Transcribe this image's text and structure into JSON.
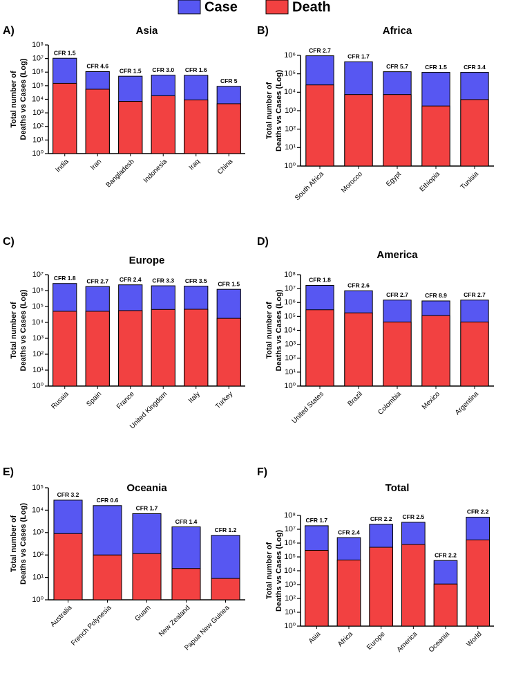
{
  "chart_data": [
    {
      "type": "bar",
      "panel": "A)",
      "title": "Asia",
      "ylabel": [
        "Total number of",
        "Deaths vs Cases (Log)"
      ],
      "log_scale": true,
      "categories": [
        "India",
        "Iran",
        "Bangladesh",
        "Indonesia",
        "Iraq",
        "China"
      ],
      "annotations": [
        "CFR 1.5",
        "CFR 4.6",
        "CFR 1.5",
        "CFR 3.0",
        "CFR 1.6",
        "CFR 5"
      ],
      "series": [
        {
          "name": "Case",
          "color": "#5757f2",
          "values": [
            10500000,
            1100000,
            500000,
            600000,
            580000,
            90000
          ]
        },
        {
          "name": "Death",
          "color": "#f24141",
          "values": [
            150000,
            55000,
            7000,
            18000,
            9000,
            4700
          ]
        }
      ],
      "ylim": [
        1,
        100000000
      ],
      "yticks": [
        {
          "value": 1,
          "label": "10⁰"
        },
        {
          "value": 10,
          "label": "10¹"
        },
        {
          "value": 100,
          "label": "10²"
        },
        {
          "value": 1000,
          "label": "10³"
        },
        {
          "value": 10000,
          "label": "10⁴"
        },
        {
          "value": 100000,
          "label": "10⁵"
        },
        {
          "value": 1000000,
          "label": "10⁶"
        },
        {
          "value": 10000000,
          "label": "10⁷"
        },
        {
          "value": 100000000,
          "label": "10⁸"
        }
      ]
    },
    {
      "type": "bar",
      "panel": "B)",
      "title": "Africa",
      "ylabel": [
        "Total number of",
        "Deaths vs Cases (Log)"
      ],
      "log_scale": true,
      "categories": [
        "South Africa",
        "Morocco",
        "Egypt",
        "Ethiopia",
        "Tunisia"
      ],
      "annotations": [
        "CFR 2.7",
        "CFR 1.7",
        "CFR 5.7",
        "CFR 1.5",
        "CFR 3.4"
      ],
      "series": [
        {
          "name": "Case",
          "color": "#5757f2",
          "values": [
            950000,
            450000,
            130000,
            120000,
            120000
          ]
        },
        {
          "name": "Death",
          "color": "#f24141",
          "values": [
            25000,
            7500,
            7500,
            1800,
            4000
          ]
        }
      ],
      "ylim": [
        1,
        1000000
      ],
      "yticks": [
        {
          "value": 1,
          "label": "10⁰"
        },
        {
          "value": 10,
          "label": "10¹"
        },
        {
          "value": 100,
          "label": "10²"
        },
        {
          "value": 1000,
          "label": "10³"
        },
        {
          "value": 10000,
          "label": "10⁴"
        },
        {
          "value": 100000,
          "label": "10⁵"
        },
        {
          "value": 1000000,
          "label": "10⁶"
        }
      ]
    },
    {
      "type": "bar",
      "panel": "C)",
      "title": "Europe",
      "ylabel": [
        "Total number of",
        "Deaths vs Cases (Log)"
      ],
      "log_scale": true,
      "categories": [
        "Russia",
        "Spain",
        "France",
        "United Kingdom",
        "Italy",
        "Turkey"
      ],
      "annotations": [
        "CFR 1.8",
        "CFR 2.7",
        "CFR 2.4",
        "CFR 3.3",
        "CFR 3.5",
        "CFR 1.5"
      ],
      "series": [
        {
          "name": "Case",
          "color": "#5757f2",
          "values": [
            2800000,
            1800000,
            2300000,
            2000000,
            1900000,
            1200000
          ]
        },
        {
          "name": "Death",
          "color": "#f24141",
          "values": [
            50000,
            50000,
            55000,
            65000,
            67000,
            18000
          ]
        }
      ],
      "ylim": [
        1,
        10000000
      ],
      "yticks": [
        {
          "value": 1,
          "label": "10⁰"
        },
        {
          "value": 10,
          "label": "10¹"
        },
        {
          "value": 100,
          "label": "10²"
        },
        {
          "value": 1000,
          "label": "10³"
        },
        {
          "value": 10000,
          "label": "10⁴"
        },
        {
          "value": 100000,
          "label": "10⁵"
        },
        {
          "value": 1000000,
          "label": "10⁶"
        },
        {
          "value": 10000000,
          "label": "10⁷"
        }
      ]
    },
    {
      "type": "bar",
      "panel": "D)",
      "title": "America",
      "ylabel": [
        "Total number of",
        "Deaths vs Cases (Log)"
      ],
      "log_scale": true,
      "categories": [
        "United States",
        "Brazil",
        "Colombia",
        "Mexico",
        "Argentina"
      ],
      "annotations": [
        "CFR 1.8",
        "CFR 2.6",
        "CFR 2.7",
        "CFR 8.9",
        "CFR 2.7"
      ],
      "series": [
        {
          "name": "Case",
          "color": "#5757f2",
          "values": [
            17000000,
            7000000,
            1500000,
            1300000,
            1500000
          ]
        },
        {
          "name": "Death",
          "color": "#f24141",
          "values": [
            300000,
            180000,
            40000,
            115000,
            40000
          ]
        }
      ],
      "ylim": [
        1,
        100000000
      ],
      "yticks": [
        {
          "value": 1,
          "label": "10⁰"
        },
        {
          "value": 10,
          "label": "10¹"
        },
        {
          "value": 100,
          "label": "10²"
        },
        {
          "value": 1000,
          "label": "10³"
        },
        {
          "value": 10000,
          "label": "10⁴"
        },
        {
          "value": 100000,
          "label": "10⁵"
        },
        {
          "value": 1000000,
          "label": "10⁶"
        },
        {
          "value": 10000000,
          "label": "10⁷"
        },
        {
          "value": 100000000,
          "label": "10⁸"
        }
      ]
    },
    {
      "type": "bar",
      "panel": "E)",
      "title": "Oceania",
      "ylabel": [
        "Total number of",
        "Deaths vs Cases (Log)"
      ],
      "log_scale": true,
      "categories": [
        "Australia",
        "French Polynesia",
        "Guam",
        "New Zealand",
        "Papua New Guinea"
      ],
      "annotations": [
        "CFR 3.2",
        "CFR 0.6",
        "CFR 1.7",
        "CFR 1.4",
        "CFR 1.2"
      ],
      "series": [
        {
          "name": "Case",
          "color": "#5757f2",
          "values": [
            28000,
            16000,
            7000,
            1800,
            750
          ]
        },
        {
          "name": "Death",
          "color": "#f24141",
          "values": [
            900,
            100,
            115,
            25,
            9
          ]
        }
      ],
      "ylim": [
        1,
        100000
      ],
      "yticks": [
        {
          "value": 1,
          "label": "10⁰"
        },
        {
          "value": 10,
          "label": "10¹"
        },
        {
          "value": 100,
          "label": "10²"
        },
        {
          "value": 1000,
          "label": "10³"
        },
        {
          "value": 10000,
          "label": "10⁴"
        },
        {
          "value": 100000,
          "label": "10⁵"
        }
      ]
    },
    {
      "type": "bar",
      "panel": "F)",
      "title": "Total",
      "ylabel": [
        "Total number of",
        "Deaths vs Cases (Log)"
      ],
      "log_scale": true,
      "categories": [
        "Asia",
        "Africa",
        "Europe",
        "America",
        "Oceania",
        "World"
      ],
      "annotations": [
        "CFR 1.7",
        "CFR 2.4",
        "CFR 2.2",
        "CFR 2.5",
        "CFR 2.2",
        "CFR 2.2"
      ],
      "series": [
        {
          "name": "Case",
          "color": "#5757f2",
          "values": [
            18000000,
            2500000,
            23000000,
            32000000,
            55000,
            75000000
          ]
        },
        {
          "name": "Death",
          "color": "#f24141",
          "values": [
            300000,
            60000,
            500000,
            800000,
            1100,
            1700000
          ]
        }
      ],
      "ylim": [
        1,
        100000000
      ],
      "yticks": [
        {
          "value": 1,
          "label": "10⁰"
        },
        {
          "value": 10,
          "label": "10¹"
        },
        {
          "value": 100,
          "label": "10²"
        },
        {
          "value": 1000,
          "label": "10³"
        },
        {
          "value": 10000,
          "label": "10⁴"
        },
        {
          "value": 100000,
          "label": "10⁵"
        },
        {
          "value": 1000000,
          "label": "10⁶"
        },
        {
          "value": 10000000,
          "label": "10⁷"
        },
        {
          "value": 100000000,
          "label": "10⁸"
        }
      ]
    }
  ]
}
